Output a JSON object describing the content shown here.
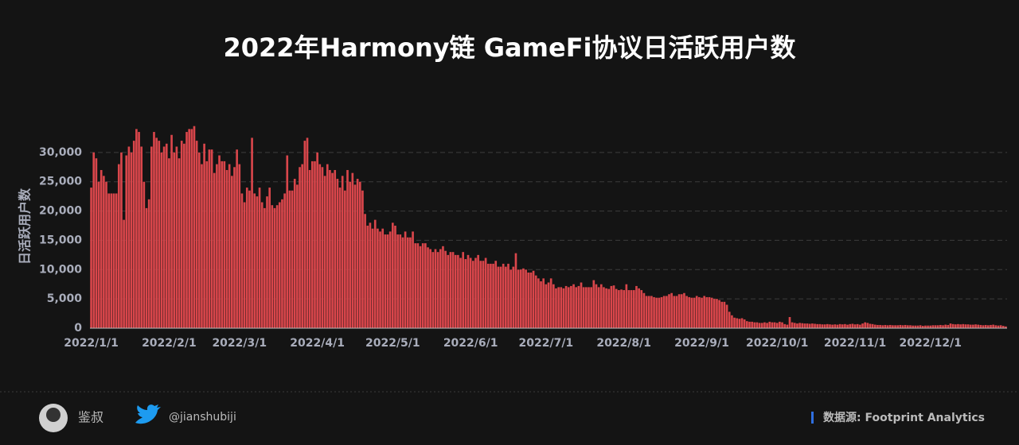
{
  "chart_data": {
    "type": "bar",
    "title": "2022年Harmony链 GameFi协议日活跃用户数",
    "y_label": "日活跃用户数",
    "categories": [
      "2022/1/1",
      null,
      null,
      null,
      null,
      null,
      null,
      null,
      null,
      null,
      null,
      null,
      null,
      null,
      null,
      null,
      null,
      null,
      null,
      null,
      null,
      null,
      null,
      null,
      null,
      null,
      null,
      null,
      null,
      null,
      null,
      "2022/2/1",
      null,
      null,
      null,
      null,
      null,
      null,
      null,
      null,
      null,
      null,
      null,
      null,
      null,
      null,
      null,
      null,
      null,
      null,
      null,
      null,
      null,
      null,
      null,
      null,
      null,
      null,
      null,
      "2022/3/1",
      null,
      null,
      null,
      null,
      null,
      null,
      null,
      null,
      null,
      null,
      null,
      null,
      null,
      null,
      null,
      null,
      null,
      null,
      null,
      null,
      null,
      null,
      null,
      null,
      null,
      null,
      null,
      null,
      null,
      null,
      "2022/4/1",
      null,
      null,
      null,
      null,
      null,
      null,
      null,
      null,
      null,
      null,
      null,
      null,
      null,
      null,
      null,
      null,
      null,
      null,
      null,
      null,
      null,
      null,
      null,
      null,
      null,
      null,
      null,
      null,
      null,
      "2022/5/1",
      null,
      null,
      null,
      null,
      null,
      null,
      null,
      null,
      null,
      null,
      null,
      null,
      null,
      null,
      null,
      null,
      null,
      null,
      null,
      null,
      null,
      null,
      null,
      null,
      null,
      null,
      null,
      null,
      null,
      null,
      "2022/6/1",
      null,
      null,
      null,
      null,
      null,
      null,
      null,
      null,
      null,
      null,
      null,
      null,
      null,
      null,
      null,
      null,
      null,
      null,
      null,
      null,
      null,
      null,
      null,
      null,
      null,
      null,
      null,
      null,
      null,
      "2022/7/1",
      null,
      null,
      null,
      null,
      null,
      null,
      null,
      null,
      null,
      null,
      null,
      null,
      null,
      null,
      null,
      null,
      null,
      null,
      null,
      null,
      null,
      null,
      null,
      null,
      null,
      null,
      null,
      null,
      null,
      null,
      "2022/8/1",
      null,
      null,
      null,
      null,
      null,
      null,
      null,
      null,
      null,
      null,
      null,
      null,
      null,
      null,
      null,
      null,
      null,
      null,
      null,
      null,
      null,
      null,
      null,
      null,
      null,
      null,
      null,
      null,
      null,
      null,
      "2022/9/1",
      null,
      null,
      null,
      null,
      null,
      null,
      null,
      null,
      null,
      null,
      null,
      null,
      null,
      null,
      null,
      null,
      null,
      null,
      null,
      null,
      null,
      null,
      null,
      null,
      null,
      null,
      null,
      null,
      null,
      "2022/10/1",
      null,
      null,
      null,
      null,
      null,
      null,
      null,
      null,
      null,
      null,
      null,
      null,
      null,
      null,
      null,
      null,
      null,
      null,
      null,
      null,
      null,
      null,
      null,
      null,
      null,
      null,
      null,
      null,
      null,
      null,
      "2022/11/1",
      null,
      null,
      null,
      null,
      null,
      null,
      null,
      null,
      null,
      null,
      null,
      null,
      null,
      null,
      null,
      null,
      null,
      null,
      null,
      null,
      null,
      null,
      null,
      null,
      null,
      null,
      null,
      null,
      null,
      "2022/12/1",
      null,
      null,
      null,
      null,
      null,
      null,
      null,
      null,
      null,
      null,
      null,
      null,
      null,
      null,
      null,
      null,
      null,
      null,
      null,
      null,
      null,
      null,
      null,
      null,
      null,
      null,
      null,
      null,
      null,
      null
    ],
    "values": [
      24000,
      30000,
      29000,
      25000,
      27000,
      26000,
      25000,
      23000,
      23000,
      23000,
      23000,
      28000,
      30000,
      18500,
      29500,
      31000,
      30000,
      32000,
      34000,
      33500,
      31000,
      25000,
      20500,
      22000,
      31000,
      33500,
      32500,
      32000,
      30000,
      31000,
      31500,
      29000,
      33000,
      30000,
      31000,
      29000,
      32000,
      31500,
      33500,
      34000,
      34000,
      34500,
      32000,
      30000,
      28000,
      31500,
      28500,
      30500,
      30500,
      26500,
      28000,
      29500,
      28500,
      28500,
      27000,
      28000,
      26000,
      27500,
      30500,
      28000,
      23000,
      21500,
      24000,
      23500,
      32500,
      23000,
      22500,
      24000,
      21500,
      20500,
      22500,
      24000,
      21000,
      20500,
      21000,
      21500,
      22000,
      23000,
      29500,
      23500,
      23500,
      25500,
      24500,
      27500,
      28000,
      32000,
      32500,
      27000,
      28500,
      28500,
      30000,
      28000,
      27500,
      26000,
      28000,
      27000,
      26500,
      27000,
      25500,
      24000,
      26000,
      23500,
      27000,
      25000,
      26500,
      24500,
      25500,
      25000,
      23500,
      19500,
      17500,
      18000,
      17000,
      18500,
      17000,
      16500,
      17000,
      16000,
      16000,
      16500,
      18000,
      17500,
      16000,
      16000,
      15500,
      16500,
      15500,
      15500,
      16500,
      14500,
      14500,
      14000,
      14500,
      14500,
      13800,
      13500,
      13000,
      13500,
      13000,
      13500,
      14000,
      13200,
      12500,
      13000,
      13000,
      12500,
      12500,
      12000,
      13000,
      11800,
      12500,
      12000,
      11500,
      12000,
      12500,
      11500,
      11500,
      12000,
      11000,
      11000,
      11000,
      11500,
      10500,
      10500,
      11000,
      10500,
      11000,
      10000,
      10500,
      12800,
      10000,
      10000,
      10200,
      10000,
      9500,
      9500,
      9800,
      9000,
      8500,
      8000,
      8500,
      7500,
      7800,
      8500,
      7500,
      6800,
      7000,
      7000,
      6800,
      7200,
      7000,
      7200,
      7500,
      7000,
      7200,
      7800,
      7000,
      7000,
      7000,
      7000,
      8200,
      7500,
      7000,
      7500,
      7000,
      6800,
      6700,
      7200,
      7300,
      6700,
      6500,
      6600,
      6500,
      7500,
      6500,
      6500,
      6500,
      7200,
      6800,
      6500,
      6000,
      5500,
      5500,
      5500,
      5300,
      5200,
      5200,
      5300,
      5500,
      5500,
      5800,
      6000,
      5500,
      5500,
      5800,
      5800,
      6000,
      5500,
      5300,
      5200,
      5200,
      5500,
      5300,
      5200,
      5500,
      5300,
      5300,
      5200,
      5000,
      5000,
      4800,
      4500,
      4500,
      4000,
      2800,
      2200,
      1800,
      1700,
      1600,
      1700,
      1500,
      1200,
      1100,
      1100,
      1000,
      1000,
      900,
      900,
      1000,
      900,
      1100,
      1000,
      1000,
      900,
      1100,
      1000,
      700,
      600,
      1900,
      1000,
      900,
      800,
      900,
      850,
      800,
      800,
      750,
      800,
      750,
      700,
      700,
      650,
      650,
      700,
      650,
      600,
      650,
      600,
      700,
      650,
      700,
      600,
      700,
      750,
      650,
      700,
      600,
      800,
      1000,
      900,
      750,
      700,
      600,
      550,
      550,
      500,
      550,
      500,
      550,
      500,
      500,
      500,
      550,
      500,
      550,
      500,
      500,
      450,
      450,
      450,
      500,
      400,
      450,
      450,
      450,
      500,
      500,
      500,
      550,
      500,
      600,
      550,
      800,
      700,
      650,
      700,
      650,
      700,
      650,
      650,
      600,
      600,
      650,
      600,
      550,
      500,
      550,
      500,
      550,
      600,
      500,
      450,
      500,
      400,
      300
    ],
    "color": "#d9464b",
    "ylim": [
      0,
      35000
    ],
    "yticks": [
      0,
      {
        "value": 5000,
        "label": "5,000"
      },
      {
        "value": 10000,
        "label": "10,000"
      },
      {
        "value": 15000,
        "label": "15,000"
      },
      {
        "value": 20000,
        "label": "20,000"
      },
      {
        "value": 25000,
        "label": "25,000"
      },
      {
        "value": 30000,
        "label": "30,000"
      }
    ],
    "grid": true
  },
  "footer": {
    "author": "鉴叔",
    "twitter": "@jianshubiji",
    "source": "数据源: Footprint  Analytics"
  }
}
